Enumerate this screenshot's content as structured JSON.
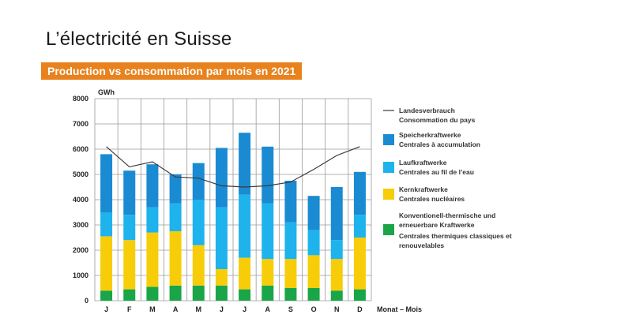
{
  "header": {
    "title": "L’électricité en Suisse",
    "subtitle": "Production vs consommation par mois en 2021"
  },
  "chart_data": {
    "type": "bar",
    "stacked": true,
    "ylabel": "GWh",
    "xlabel": "Monat – Mois",
    "ylim": [
      0,
      8000
    ],
    "yticks": [
      0,
      1000,
      2000,
      3000,
      4000,
      5000,
      6000,
      7000,
      8000
    ],
    "grid": true,
    "legend_position": "right",
    "categories": [
      "J",
      "F",
      "M",
      "A",
      "M",
      "J",
      "J",
      "A",
      "S",
      "O",
      "N",
      "D"
    ],
    "series": [
      {
        "name": [
          "Konventionell-thermische und",
          "erneuerbare Kraftwerke",
          "Centrales thermiques classiques et",
          "renouvelables"
        ],
        "color": "#1aa648",
        "values": [
          400,
          450,
          550,
          600,
          600,
          600,
          450,
          600,
          500,
          500,
          400,
          450
        ]
      },
      {
        "name": [
          "Kernkraftwerke",
          "Centrales nucléaires"
        ],
        "color": "#f7cd0a",
        "values": [
          2150,
          1950,
          2150,
          2150,
          1600,
          650,
          1250,
          1050,
          1150,
          1300,
          1250,
          2050
        ]
      },
      {
        "name": [
          "Laufkraftwerke",
          "Centrales au fil de l’eau"
        ],
        "color": "#1eb3ec",
        "values": [
          950,
          1000,
          1000,
          1100,
          1800,
          2450,
          2500,
          2200,
          1450,
          1000,
          750,
          900
        ]
      },
      {
        "name": [
          "Speicherkraftwerke",
          "Centrales à accumulation"
        ],
        "color": "#1a8bd2",
        "values": [
          2300,
          1750,
          1700,
          1150,
          1450,
          2350,
          2450,
          2250,
          1650,
          1350,
          2100,
          1700
        ]
      }
    ],
    "line": {
      "name": [
        "Landesverbrauch",
        "Consommation du pays"
      ],
      "color": "#3a3a3a",
      "values": [
        6100,
        5300,
        5500,
        4900,
        4850,
        4550,
        4500,
        4550,
        4700,
        5200,
        5750,
        6100
      ]
    }
  }
}
